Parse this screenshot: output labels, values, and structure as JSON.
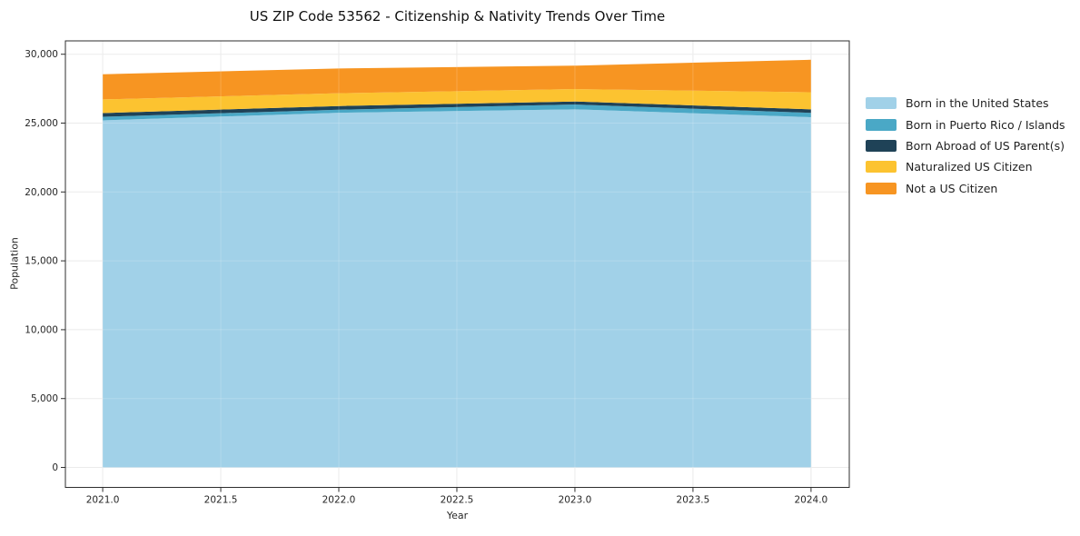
{
  "chart_data": {
    "type": "area",
    "stacked": true,
    "title": "US ZIP Code 53562 - Citizenship & Nativity Trends Over Time",
    "xlabel": "Year",
    "ylabel": "Population",
    "x": [
      2021,
      2022,
      2023,
      2024
    ],
    "series": [
      {
        "name": "Born in the United States",
        "color": "#a1d1e8",
        "values": [
          25200,
          25750,
          26000,
          25430
        ]
      },
      {
        "name": "Born in Puerto Rico / Islands",
        "color": "#4aa8c6",
        "values": [
          260,
          220,
          350,
          310
        ]
      },
      {
        "name": "Born Abroad of US Parent(s)",
        "color": "#1f4257",
        "values": [
          270,
          270,
          220,
          260
        ]
      },
      {
        "name": "Naturalized US Citizen",
        "color": "#fcc330",
        "values": [
          990,
          930,
          900,
          1240
        ]
      },
      {
        "name": "Not a US Citizen",
        "color": "#f79522",
        "values": [
          1830,
          1800,
          1700,
          2360
        ]
      }
    ],
    "x_ticks": {
      "values": [
        2021.0,
        2021.5,
        2022.0,
        2022.5,
        2023.0,
        2023.5,
        2024.0
      ],
      "labels": [
        "2021.0",
        "2021.5",
        "2022.0",
        "2022.5",
        "2023.0",
        "2023.5",
        "2024.0"
      ]
    },
    "y_ticks": {
      "values": [
        0,
        5000,
        10000,
        15000,
        20000,
        25000,
        30000
      ],
      "labels": [
        "0",
        "5,000",
        "10,000",
        "15,000",
        "20,000",
        "25,000",
        "30,000"
      ]
    },
    "xlim": [
      2020.842,
      2024.162
    ],
    "ylim": [
      -1450,
      30970
    ],
    "grid": true,
    "legend_position": "right-outside"
  },
  "style": {
    "background": "#ffffff",
    "spine_color": "#2e2e2e",
    "grid_color": "#e7e7e7",
    "grid_overlay_color": "rgba(255,255,255,0.18)",
    "tick_color": "#2e2e2e",
    "text_color": "#262626"
  }
}
